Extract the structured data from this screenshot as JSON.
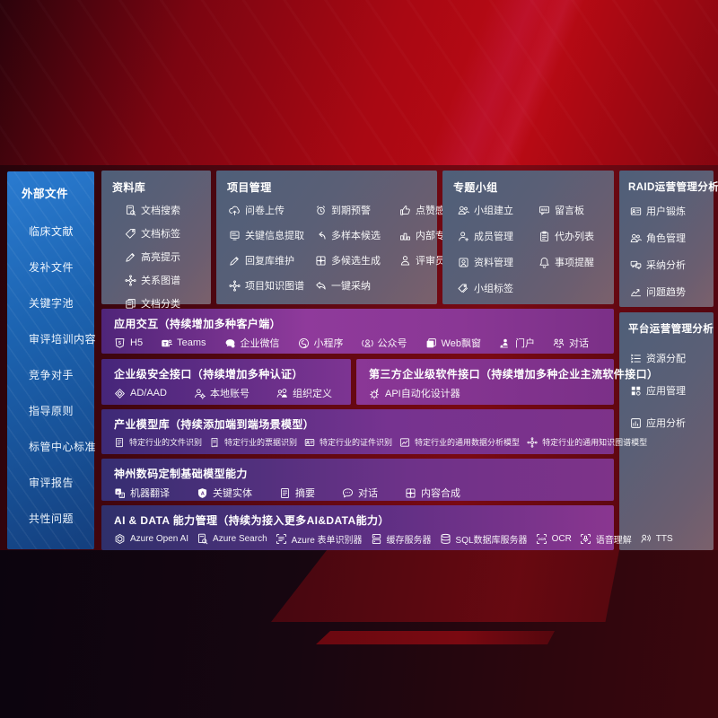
{
  "colors": {
    "background_red": "#b00b13",
    "sidebar_blue": "#1c63b0",
    "panel_slate": "#5b6278",
    "row_purple": "#8c3a9a",
    "text": "#ffffff"
  },
  "sidebar": {
    "title": "外部文件",
    "items": [
      "临床文献",
      "发补文件",
      "关键字池",
      "审评培训内容",
      "竞争对手",
      "指导原则",
      "标管中心标准",
      "审评报告",
      "共性问题"
    ]
  },
  "panels": {
    "library": {
      "title": "资料库",
      "items": [
        {
          "icon": "doc-search",
          "label": "文档搜索"
        },
        {
          "icon": "tag",
          "label": "文档标签"
        },
        {
          "icon": "highlight",
          "label": "高亮提示"
        },
        {
          "icon": "network",
          "label": "关系图谱"
        },
        {
          "icon": "docs",
          "label": "文档分类"
        }
      ]
    },
    "project": {
      "title": "项目管理",
      "items": [
        {
          "icon": "cloud-up",
          "label": "问卷上传"
        },
        {
          "icon": "alarm",
          "label": "到期预警"
        },
        {
          "icon": "thumb",
          "label": "点赞感谢"
        },
        {
          "icon": "doc-extract",
          "label": "关键信息提取"
        },
        {
          "icon": "reply",
          "label": "多样本候选"
        },
        {
          "icon": "podium",
          "label": "内部专家排名"
        },
        {
          "icon": "pencil",
          "label": "回复库维护"
        },
        {
          "icon": "puzzle",
          "label": "多候选生成"
        },
        {
          "icon": "person",
          "label": "评审员画像"
        },
        {
          "icon": "network",
          "label": "项目知识图谱"
        },
        {
          "icon": "adopt",
          "label": "一键采纳"
        }
      ]
    },
    "group": {
      "title": "专题小组",
      "items": [
        {
          "icon": "people",
          "label": "小组建立"
        },
        {
          "icon": "bbs",
          "label": "留言板"
        },
        {
          "icon": "person-plus",
          "label": "成员管理"
        },
        {
          "icon": "clipboard",
          "label": "代办列表"
        },
        {
          "icon": "album",
          "label": "资料管理"
        },
        {
          "icon": "bell",
          "label": "事项提醒"
        },
        {
          "icon": "tags",
          "label": "小组标签"
        }
      ]
    },
    "raid": {
      "title": "RAID运营管理分析",
      "items": [
        {
          "icon": "id-card",
          "label": "用户锻炼"
        },
        {
          "icon": "people",
          "label": "角色管理"
        },
        {
          "icon": "qa-chat",
          "label": "采纳分析"
        },
        {
          "icon": "trend",
          "label": "问题趋势"
        }
      ]
    },
    "platform": {
      "title": "平台运营管理分析",
      "items": [
        {
          "icon": "list-alloc",
          "label": "资源分配"
        },
        {
          "icon": "app-grid",
          "label": "应用管理"
        },
        {
          "icon": "app-chart",
          "label": "应用分析"
        }
      ]
    },
    "interaction": {
      "title": "应用交互（持续增加多种客户端）",
      "items": [
        {
          "icon": "h5",
          "label": "H5"
        },
        {
          "icon": "teams",
          "label": "Teams"
        },
        {
          "icon": "wechat",
          "label": "企业微信"
        },
        {
          "icon": "miniprogram",
          "label": "小程序"
        },
        {
          "icon": "official",
          "label": "公众号"
        },
        {
          "icon": "web-window",
          "label": "Web飘窗"
        },
        {
          "icon": "portal",
          "label": "门户"
        },
        {
          "icon": "dialog",
          "label": "对话"
        }
      ]
    },
    "security": {
      "title": "企业级安全接口（持续增加多种认证）",
      "items": [
        {
          "icon": "ad-diamond",
          "label": "AD/AAD"
        },
        {
          "icon": "person-gear",
          "label": "本地账号"
        },
        {
          "icon": "org",
          "label": "组织定义"
        }
      ]
    },
    "thirdparty": {
      "title": "第三方企业级软件接口（持续增加多种企业主流软件接口）",
      "items": [
        {
          "icon": "api-gear",
          "label": "API自动化设计器"
        }
      ]
    },
    "industry": {
      "title": "产业模型库（持续添加端到端场景模型）",
      "items": [
        {
          "icon": "summary",
          "label": "特定行业的文件识别"
        },
        {
          "icon": "receipt",
          "label": "特定行业的票据识别"
        },
        {
          "icon": "id-card",
          "label": "特定行业的证件识别"
        },
        {
          "icon": "data-image",
          "label": "特定行业的通用数据分析模型"
        },
        {
          "icon": "network",
          "label": "特定行业的通用知识图谱模型"
        }
      ]
    },
    "base": {
      "title": "神州数码定制基础模型能力",
      "items": [
        {
          "icon": "translate",
          "label": "机器翻译"
        },
        {
          "icon": "shield-a",
          "label": "关键实体"
        },
        {
          "icon": "summary",
          "label": "摘要"
        },
        {
          "icon": "chat-dots",
          "label": "对话"
        },
        {
          "icon": "puzzle",
          "label": "内容合成"
        }
      ]
    },
    "aidata": {
      "title": "AI & DATA 能力管理（持续为接入更多AI&DATA能力）",
      "items": [
        {
          "icon": "openai",
          "label": "Azure Open AI"
        },
        {
          "icon": "doc-search",
          "label": "Azure Search"
        },
        {
          "icon": "form-recog",
          "label": "Azure 表单识别器"
        },
        {
          "icon": "cache-server",
          "label": "缓存服务器"
        },
        {
          "icon": "sql-db",
          "label": "SQL数据库服务器"
        },
        {
          "icon": "ocr",
          "label": "OCR"
        },
        {
          "icon": "speech",
          "label": "语音理解"
        },
        {
          "icon": "tts",
          "label": "TTS"
        }
      ]
    }
  }
}
